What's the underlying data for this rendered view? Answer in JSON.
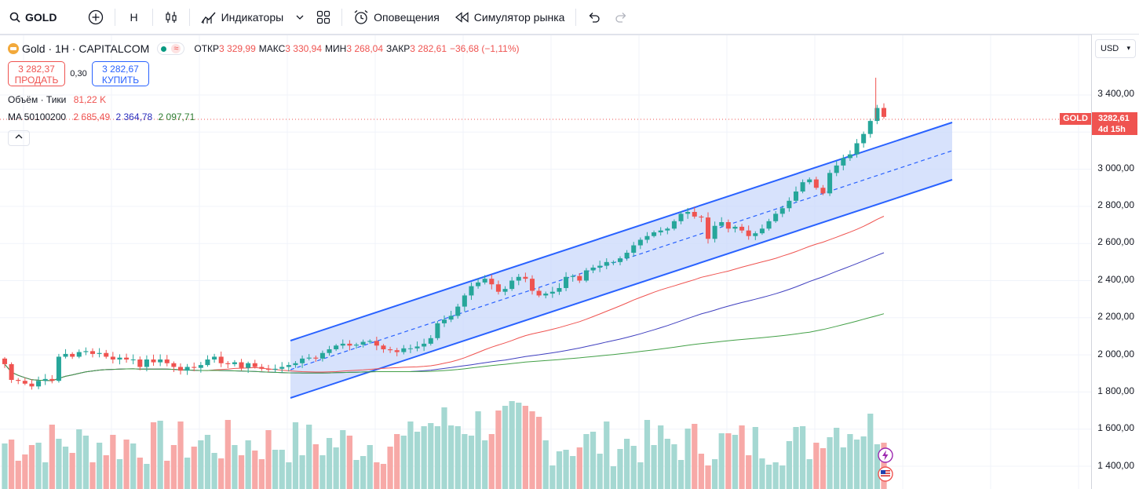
{
  "toolbar": {
    "symbol": "GOLD",
    "interval": "H",
    "indicators": "Индикаторы",
    "alerts": "Оповещения",
    "replay": "Симулятор рынка"
  },
  "legend": {
    "title": "Gold · 1H · CAPITALCOM",
    "wave": "≈",
    "open_k": "ОТКР",
    "open_v": "3 329,99",
    "high_k": "МАКС",
    "high_v": "3 330,94",
    "low_k": "МИН",
    "low_v": "3 268,04",
    "close_k": "ЗАКР",
    "close_v": "3 282,61",
    "change": "−36,68 (−1,11%)",
    "sell_price": "3 282,37",
    "sell_label": "ПРОДАТЬ",
    "spread": "0,30",
    "buy_price": "3 282,67",
    "buy_label": "КУПИТЬ",
    "volume_label": "Объём · Тики",
    "volume_value": "81,22 K",
    "ma_label": "MA 50100200",
    "ma1": "2 685,49",
    "ma2": "2 364,78",
    "ma3": "2 097,71"
  },
  "axis": {
    "currency": "USD",
    "ticks": [
      "3 400,00",
      "3 000,00",
      "2 800,00",
      "2 600,00",
      "2 400,00",
      "2 200,00",
      "2 000,00",
      "1 800,00",
      "1 600,00",
      "1 400,00"
    ],
    "last_price": "3282,61",
    "countdown": "4d 15h",
    "symbol_tag": "GOLD"
  },
  "colors": {
    "up": "#26a69a",
    "down": "#ef5350",
    "channel": "#2962ff",
    "ma50": "#ef5350",
    "ma100": "#3f3fbf",
    "ma200": "#43a047"
  }
}
